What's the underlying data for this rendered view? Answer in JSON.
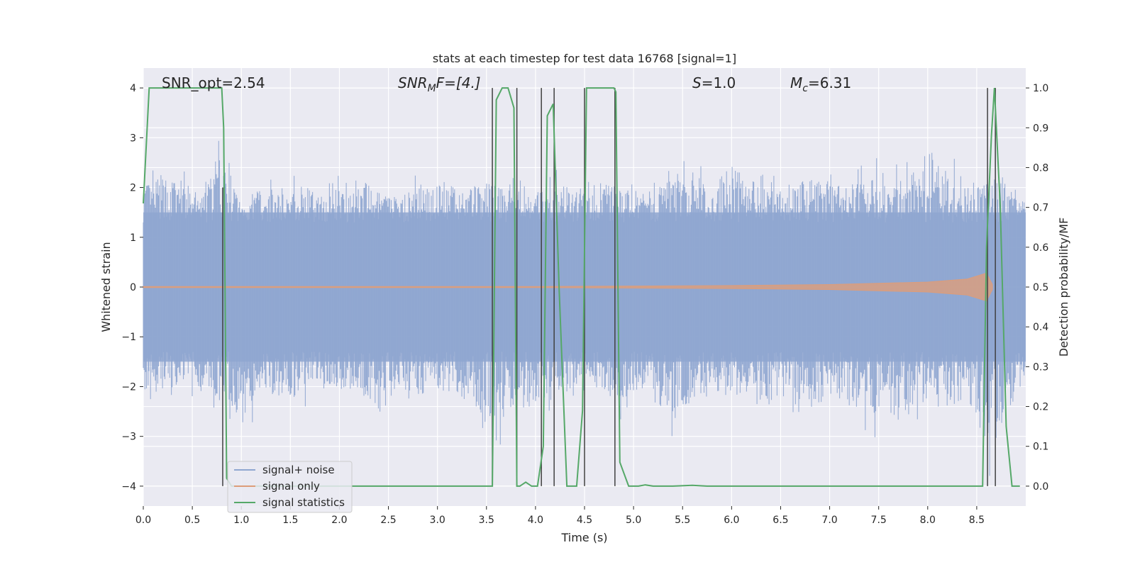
{
  "chart_data": {
    "type": "line",
    "title": "stats at each timestep for test data 16768 [signal=1]",
    "xlabel": "Time (s)",
    "ylabel_left": "Whitened strain",
    "ylabel_right": "Detection probability/MF",
    "xlim": [
      0,
      9.0
    ],
    "ylim_left": [
      -4.4,
      4.4
    ],
    "ylim_right": [
      -0.05,
      1.05
    ],
    "x_ticks": [
      "0.0",
      "0.5",
      "1.0",
      "1.5",
      "2.0",
      "2.5",
      "3.0",
      "3.5",
      "4.0",
      "4.5",
      "5.0",
      "5.5",
      "6.0",
      "6.5",
      "7.0",
      "7.5",
      "8.0",
      "8.5"
    ],
    "y_left_ticks": [
      "−4",
      "−3",
      "−2",
      "−1",
      "0",
      "1",
      "2",
      "3",
      "4"
    ],
    "y_right_ticks": [
      "0.0",
      "0.1",
      "0.2",
      "0.3",
      "0.4",
      "0.5",
      "0.6",
      "0.7",
      "0.8",
      "0.9",
      "1.0"
    ],
    "grid": true,
    "annotations": {
      "snr_opt": "SNR_opt=2.54",
      "snr_mf_base": "SNR",
      "snr_mf_sub": "M",
      "snr_mf_rest": "F=[4.]",
      "s_label": "S",
      "s_rest": "=1.0",
      "mc_base": "M",
      "mc_sub": "c",
      "mc_rest": "=6.31"
    },
    "legend": {
      "placement": "lower-left",
      "entries": [
        {
          "label": "signal+ noise",
          "color": "#8fa6d0"
        },
        {
          "label": "signal only",
          "color": "#dd9d7a"
        },
        {
          "label": "signal statistics",
          "color": "#55a868"
        }
      ]
    },
    "colors": {
      "background": "#eaeaf2",
      "grid": "#ffffff",
      "noise": "#8fa6d0",
      "signal": "#dd9d7a",
      "stats": "#55a868",
      "vlines": "#404040"
    },
    "series": [
      {
        "name": "signal statistics",
        "axis": "right",
        "x": [
          0.0,
          0.06,
          0.12,
          0.2,
          0.3,
          0.4,
          0.5,
          0.6,
          0.7,
          0.8,
          0.82,
          0.85,
          0.9,
          1.0,
          1.5,
          2.0,
          2.5,
          3.0,
          3.5,
          3.56,
          3.6,
          3.66,
          3.72,
          3.78,
          3.81,
          3.84,
          3.9,
          3.96,
          4.02,
          4.08,
          4.12,
          4.18,
          4.24,
          4.32,
          4.42,
          4.48,
          4.52,
          4.6,
          4.8,
          4.82,
          4.86,
          4.95,
          5.05,
          5.12,
          5.2,
          5.4,
          5.6,
          5.75,
          6.0,
          7.0,
          8.0,
          8.5,
          8.56,
          8.6,
          8.65,
          8.68,
          8.74,
          8.8,
          8.86,
          8.94
        ],
        "y": [
          0.71,
          1.0,
          1.0,
          1.0,
          1.0,
          1.0,
          1.0,
          1.0,
          1.0,
          1.0,
          0.9,
          0.02,
          0.0,
          0.0,
          0.0,
          0.0,
          0.0,
          0.0,
          0.0,
          0.0,
          0.97,
          1.0,
          1.0,
          0.95,
          0.0,
          0.0,
          0.01,
          0.0,
          0.0,
          0.1,
          0.93,
          0.96,
          0.5,
          0.0,
          0.0,
          0.19,
          1.0,
          1.0,
          1.0,
          0.99,
          0.06,
          0.0,
          0.0,
          0.003,
          0.0,
          0.0,
          0.002,
          0.0,
          0.0,
          0.0,
          0.0,
          0.0,
          0.0,
          0.6,
          0.88,
          1.0,
          0.7,
          0.15,
          0.0,
          0.0
        ]
      },
      {
        "name": "signal only",
        "axis": "left",
        "x": [
          0.0,
          4.0,
          5.0,
          6.0,
          7.0,
          8.0,
          8.4,
          8.5,
          8.6,
          8.66
        ],
        "amplitude": [
          0.01,
          0.01,
          0.02,
          0.03,
          0.05,
          0.1,
          0.16,
          0.22,
          0.28,
          0.05
        ]
      }
    ],
    "noise_envelope": {
      "x": [
        0.0,
        0.2,
        0.4,
        0.6,
        0.8,
        1.0,
        1.2,
        1.4,
        1.6,
        1.8,
        2.0,
        2.2,
        2.4,
        2.6,
        2.8,
        3.0,
        3.2,
        3.4,
        3.6,
        3.8,
        4.0,
        4.2,
        4.4,
        4.6,
        4.8,
        5.0,
        5.2,
        5.4,
        5.6,
        5.8,
        6.0,
        6.2,
        6.4,
        6.6,
        6.8,
        7.0,
        7.2,
        7.4,
        7.6,
        7.8,
        8.0,
        8.2,
        8.4,
        8.6,
        8.8,
        9.0
      ],
      "upper": [
        2.3,
        2.6,
        2.4,
        2.0,
        3.2,
        1.8,
        2.3,
        2.1,
        2.4,
        2.0,
        2.3,
        2.5,
        2.1,
        2.0,
        2.3,
        2.5,
        2.2,
        2.4,
        2.3,
        2.6,
        2.0,
        2.4,
        2.2,
        2.5,
        2.3,
        2.1,
        2.5,
        2.4,
        2.7,
        2.2,
        2.9,
        2.4,
        2.3,
        2.1,
        2.6,
        2.4,
        2.3,
        2.7,
        2.5,
        2.6,
        3.3,
        2.7,
        2.5,
        2.4,
        2.6,
        1.9
      ],
      "lower": [
        -2.8,
        -2.4,
        -2.1,
        -2.3,
        -2.7,
        -3.4,
        -2.2,
        -2.5,
        -2.6,
        -2.1,
        -2.4,
        -2.3,
        -3.3,
        -2.2,
        -2.5,
        -2.3,
        -2.6,
        -2.8,
        -3.7,
        -2.6,
        -2.8,
        -2.4,
        -2.5,
        -2.2,
        -2.7,
        -2.6,
        -2.6,
        -3.2,
        -2.6,
        -2.3,
        -2.6,
        -2.4,
        -2.7,
        -2.5,
        -2.9,
        -2.5,
        -2.6,
        -3.3,
        -2.6,
        -3.0,
        -2.6,
        -2.7,
        -2.7,
        -4.0,
        -3.0,
        -2.0
      ]
    },
    "vertical_lines": [
      {
        "x": 0.81,
        "y_range": [
          -4.0,
          2.0
        ]
      },
      {
        "x": 3.56,
        "y_range": [
          -4.0,
          4.0
        ]
      },
      {
        "x": 3.81,
        "y_range": [
          -4.0,
          4.0
        ]
      },
      {
        "x": 4.06,
        "y_range": [
          -4.0,
          4.0
        ]
      },
      {
        "x": 4.19,
        "y_range": [
          -4.0,
          4.0
        ]
      },
      {
        "x": 4.5,
        "y_range": [
          -4.0,
          4.0
        ]
      },
      {
        "x": 4.81,
        "y_range": [
          -4.0,
          4.0
        ]
      },
      {
        "x": 8.61,
        "y_range": [
          -4.0,
          4.0
        ]
      },
      {
        "x": 8.69,
        "y_range": [
          -4.0,
          4.0
        ]
      }
    ]
  }
}
